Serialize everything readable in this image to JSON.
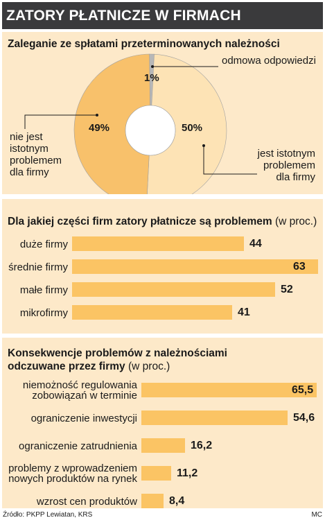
{
  "header": {
    "title": "ZATORY PŁATNICZE W FIRMACH"
  },
  "chart_data": [
    {
      "type": "pie",
      "title": "Zaleganie ze spłatami przeterminowanych należności",
      "slices": [
        {
          "label": "jest istotnym problemem dla firmy",
          "value": 50,
          "value_label": "50%"
        },
        {
          "label": "odmowa odpowiedzi",
          "value": 1,
          "value_label": "1%"
        },
        {
          "label": "nie jest istotnym problemem dla firmy",
          "value": 49,
          "value_label": "49%"
        }
      ],
      "labels_text": {
        "refuse": "odmowa odpowiedzi",
        "not_problem": [
          "nie jest",
          "istotnym",
          "problemem",
          "dla firmy"
        ],
        "problem": [
          "jest istotnym",
          "problemem",
          "dla firmy"
        ]
      },
      "colors": {
        "light": "#fde3b5",
        "dark": "#f8c16b",
        "gray": "#9a9a9a",
        "refuse": "#b8b8b8"
      }
    },
    {
      "type": "bar",
      "title": "Dla jakiej części firm zatory płatnicze są problemem",
      "unit": "(w proc.)",
      "categories": [
        "duże firmy",
        "średnie firmy",
        "małe firmy",
        "mikrofirmy"
      ],
      "values": [
        44,
        63,
        52,
        41
      ],
      "value_labels": [
        "44",
        "63",
        "52",
        "41"
      ],
      "xlim": [
        0,
        63
      ]
    },
    {
      "type": "bar",
      "title_lines": [
        "Konsekwencje problemów z należnościami",
        "odczuwane przez firmy"
      ],
      "unit": "(w proc.)",
      "categories": [
        [
          "niemożność regulowania",
          "zobowiązań w terminie"
        ],
        [
          "ograniczenie inwestycji"
        ],
        [
          "ograniczenie zatrudnienia"
        ],
        [
          "problemy z wprowadzeniem",
          "nowych produktów na rynek"
        ],
        [
          "wzrost cen produktów"
        ]
      ],
      "values": [
        65.5,
        54.6,
        16.2,
        11.2,
        8.4
      ],
      "value_labels": [
        "65,5",
        "54,6",
        "16,2",
        "11,2",
        "8,4"
      ],
      "xlim": [
        0,
        65.5
      ]
    }
  ],
  "footer": {
    "source": "Źródło: PKPP Lewiatan, KRS",
    "author": "MC"
  },
  "colors": {
    "bar": "#fbc464",
    "panel": "#fde9c9",
    "header": "#3a3a3c"
  }
}
